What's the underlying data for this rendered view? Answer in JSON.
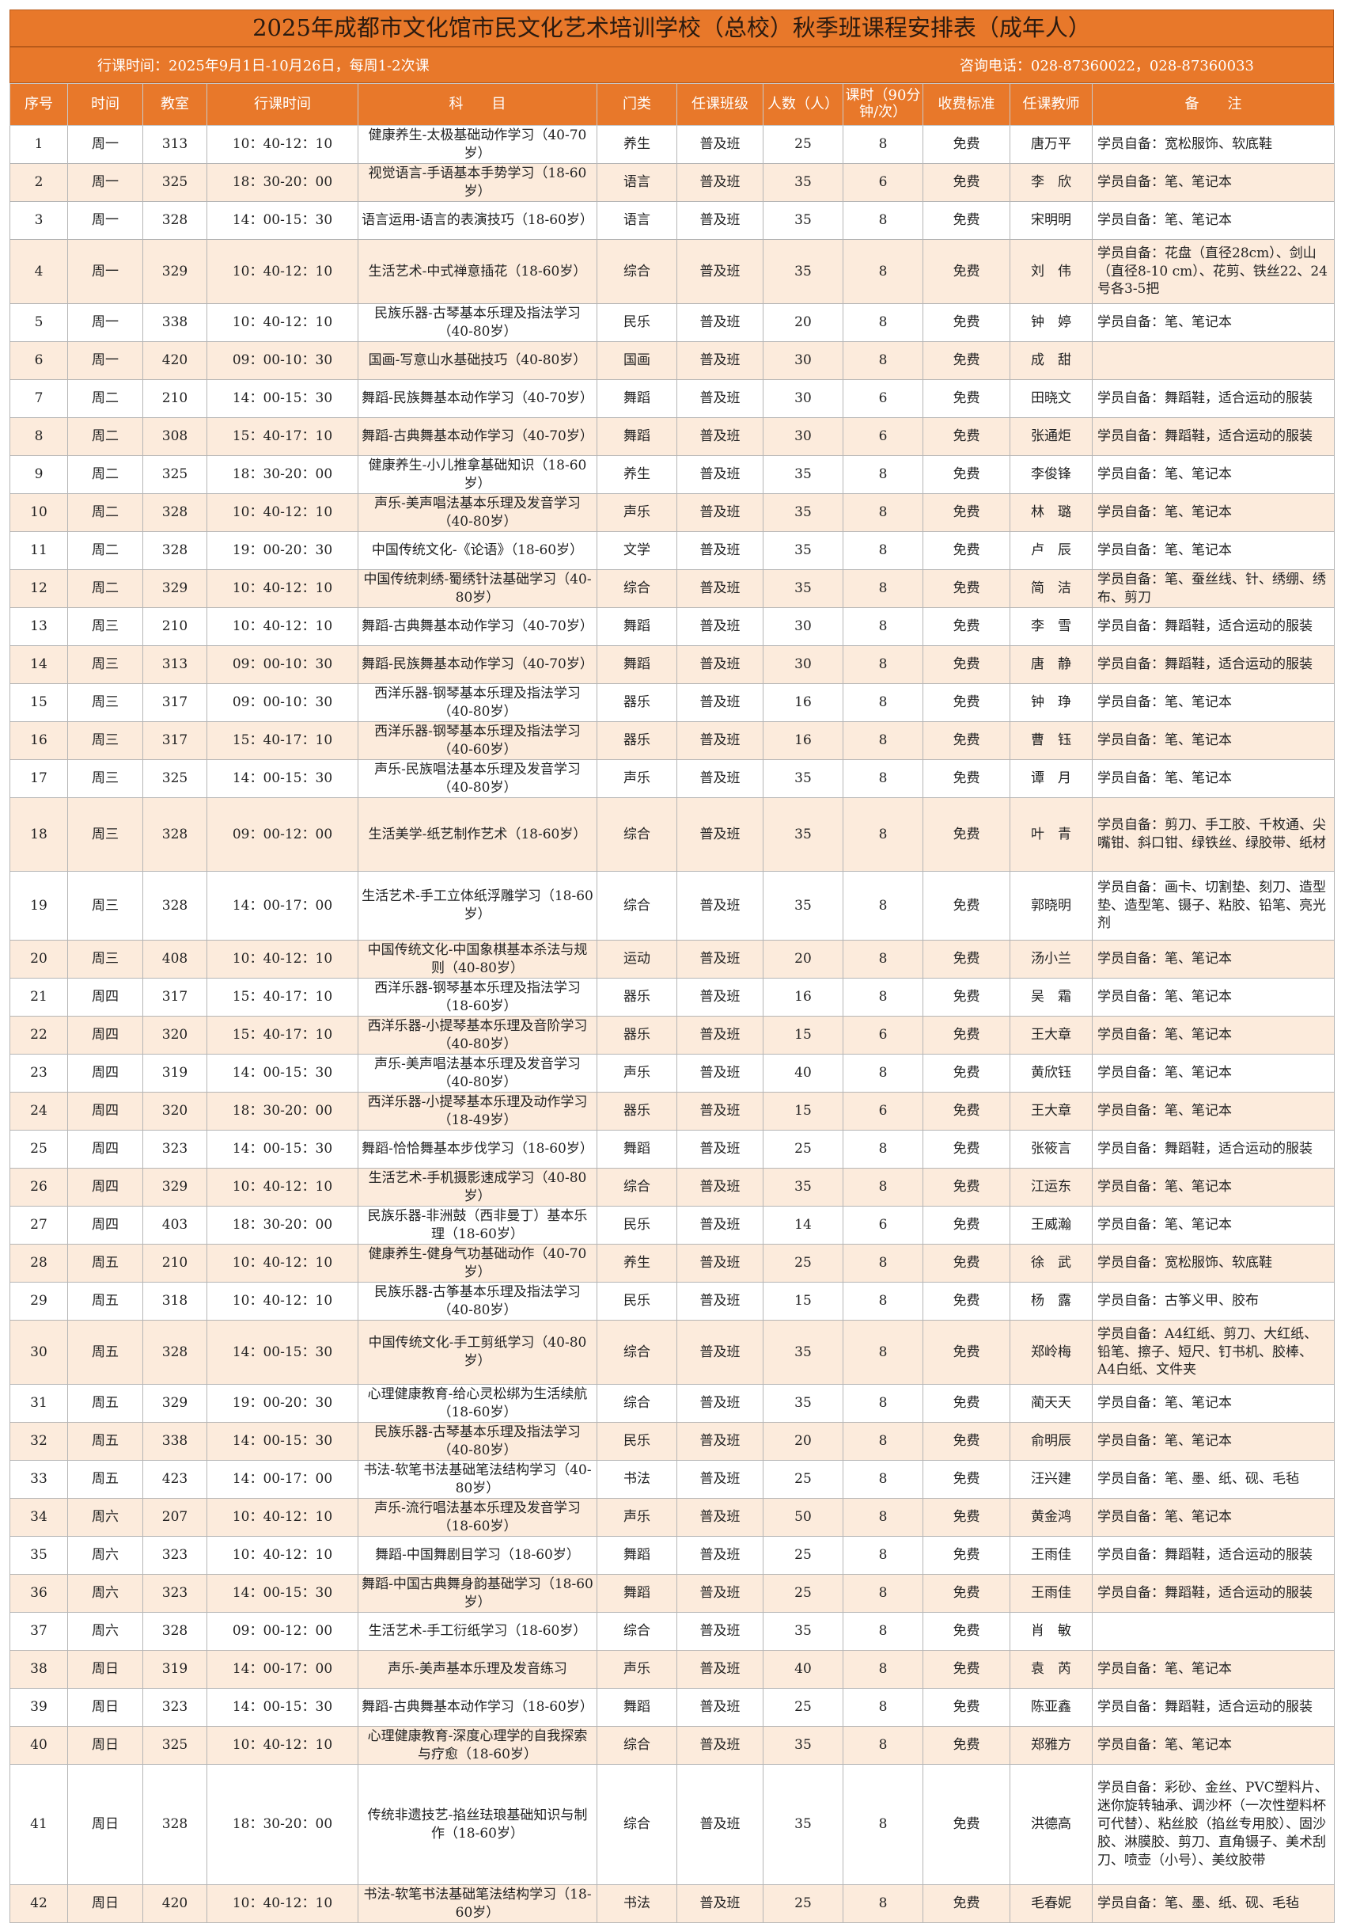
{
  "header": {
    "title": "2025年成都市文化馆市民文化艺术培训学校（总校）秋季班课程安排表（成年人）",
    "time": "行课时间：2025年9月1日-10月26日，每周1-2次课",
    "phone": "咨询电话：028-87360022，028-87360033"
  },
  "table": {
    "columns": [
      "序号",
      "时间",
      "教室",
      "行课时间",
      "科　　目",
      "门类",
      "任课班级",
      "人数（人）",
      "课时（90分钟/次）",
      "收费标准",
      "任课教师",
      "备　　注"
    ],
    "rows": [
      [
        "1",
        "周一",
        "313",
        "10：40-12：10",
        "健康养生-太极基础动作学习（40-70岁）",
        "养生",
        "普及班",
        "25",
        "8",
        "免费",
        "唐万平",
        "学员自备：宽松服饰、软底鞋"
      ],
      [
        "2",
        "周一",
        "325",
        "18：30-20：00",
        "视觉语言-手语基本手势学习（18-60岁）",
        "语言",
        "普及班",
        "35",
        "6",
        "免费",
        "李　欣",
        "学员自备：笔、笔记本"
      ],
      [
        "3",
        "周一",
        "328",
        "14：00-15：30",
        "语言运用-语言的表演技巧（18-60岁）",
        "语言",
        "普及班",
        "35",
        "8",
        "免费",
        "宋明明",
        "学员自备：笔、笔记本"
      ],
      [
        "4",
        "周一",
        "329",
        "10：40-12：10",
        "生活艺术-中式禅意插花（18-60岁）",
        "综合",
        "普及班",
        "35",
        "8",
        "免费",
        "刘　伟",
        "学员自备：花盘（直径28cm）、剑山（直径8-10 cm）、花剪、铁丝22、24号各3-5把"
      ],
      [
        "5",
        "周一",
        "338",
        "10：40-12：10",
        "民族乐器-古琴基本乐理及指法学习（40-80岁）",
        "民乐",
        "普及班",
        "20",
        "8",
        "免费",
        "钟　婷",
        "学员自备：笔、笔记本"
      ],
      [
        "6",
        "周一",
        "420",
        "09：00-10：30",
        "国画-写意山水基础技巧（40-80岁）",
        "国画",
        "普及班",
        "30",
        "8",
        "免费",
        "成　甜",
        ""
      ],
      [
        "7",
        "周二",
        "210",
        "14：00-15：30",
        "舞蹈-民族舞基本动作学习（40-70岁）",
        "舞蹈",
        "普及班",
        "30",
        "6",
        "免费",
        "田晓文",
        "学员自备：舞蹈鞋，适合运动的服装"
      ],
      [
        "8",
        "周二",
        "308",
        "15：40-17：10",
        "舞蹈-古典舞基本动作学习（40-70岁）",
        "舞蹈",
        "普及班",
        "30",
        "6",
        "免费",
        "张通炬",
        "学员自备：舞蹈鞋，适合运动的服装"
      ],
      [
        "9",
        "周二",
        "325",
        "18：30-20：00",
        "健康养生-小儿推拿基础知识（18-60岁）",
        "养生",
        "普及班",
        "35",
        "8",
        "免费",
        "李俊锋",
        "学员自备：笔、笔记本"
      ],
      [
        "10",
        "周二",
        "328",
        "10：40-12：10",
        "声乐-美声唱法基本乐理及发音学习（40-80岁）",
        "声乐",
        "普及班",
        "35",
        "8",
        "免费",
        "林　璐",
        "学员自备：笔、笔记本"
      ],
      [
        "11",
        "周二",
        "328",
        "19：00-20：30",
        "中国传统文化-《论语》（18-60岁）",
        "文学",
        "普及班",
        "35",
        "8",
        "免费",
        "卢　辰",
        "学员自备：笔、笔记本"
      ],
      [
        "12",
        "周二",
        "329",
        "10：40-12：10",
        "中国传统刺绣-蜀绣针法基础学习（40-80岁）",
        "综合",
        "普及班",
        "35",
        "8",
        "免费",
        "简　洁",
        "学员自备：笔、蚕丝线、针、绣绷、绣布、剪刀"
      ],
      [
        "13",
        "周三",
        "210",
        "10：40-12：10",
        "舞蹈-古典舞基本动作学习（40-70岁）",
        "舞蹈",
        "普及班",
        "30",
        "8",
        "免费",
        "李　雪",
        "学员自备：舞蹈鞋，适合运动的服装"
      ],
      [
        "14",
        "周三",
        "313",
        "09：00-10：30",
        "舞蹈-民族舞基本动作学习（40-70岁）",
        "舞蹈",
        "普及班",
        "30",
        "8",
        "免费",
        "唐　静",
        "学员自备：舞蹈鞋，适合运动的服装"
      ],
      [
        "15",
        "周三",
        "317",
        "09：00-10：30",
        "西洋乐器-钢琴基本乐理及指法学习（40-80岁）",
        "器乐",
        "普及班",
        "16",
        "8",
        "免费",
        "钟　琤",
        "学员自备：笔、笔记本"
      ],
      [
        "16",
        "周三",
        "317",
        "15：40-17：10",
        "西洋乐器-钢琴基本乐理及指法学习（40-60岁）",
        "器乐",
        "普及班",
        "16",
        "8",
        "免费",
        "曹　钰",
        "学员自备：笔、笔记本"
      ],
      [
        "17",
        "周三",
        "325",
        "14：00-15：30",
        "声乐-民族唱法基本乐理及发音学习（40-80岁）",
        "声乐",
        "普及班",
        "35",
        "8",
        "免费",
        "谭　月",
        "学员自备：笔、笔记本"
      ],
      [
        "18",
        "周三",
        "328",
        "09：00-12：00",
        "生活美学-纸艺制作艺术（18-60岁）",
        "综合",
        "普及班",
        "35",
        "8",
        "免费",
        "叶　青",
        "学员自备：剪刀、手工胶、千枚通、尖嘴钳、斜口钳、绿铁丝、绿胶带、纸材"
      ],
      [
        "19",
        "周三",
        "328",
        "14：00-17：00",
        "生活艺术-手工立体纸浮雕学习（18-60岁）",
        "综合",
        "普及班",
        "35",
        "8",
        "免费",
        "郭晓明",
        "学员自备：画卡、切割垫、刻刀、造型垫、造型笔、镊子、粘胶、铅笔、亮光剂"
      ],
      [
        "20",
        "周三",
        "408",
        "10：40-12：10",
        "中国传统文化-中国象棋基本杀法与规则（40-80岁）",
        "运动",
        "普及班",
        "20",
        "8",
        "免费",
        "汤小兰",
        "学员自备：笔、笔记本"
      ],
      [
        "21",
        "周四",
        "317",
        "15：40-17：10",
        "西洋乐器-钢琴基本乐理及指法学习（18-60岁）",
        "器乐",
        "普及班",
        "16",
        "8",
        "免费",
        "吴　霜",
        "学员自备：笔、笔记本"
      ],
      [
        "22",
        "周四",
        "320",
        "15：40-17：10",
        "西洋乐器-小提琴基本乐理及音阶学习（40-80岁）",
        "器乐",
        "普及班",
        "15",
        "6",
        "免费",
        "王大章",
        "学员自备：笔、笔记本"
      ],
      [
        "23",
        "周四",
        "319",
        "14：00-15：30",
        "声乐-美声唱法基本乐理及发音学习（40-80岁）",
        "声乐",
        "普及班",
        "40",
        "8",
        "免费",
        "黄欣钰",
        "学员自备：笔、笔记本"
      ],
      [
        "24",
        "周四",
        "320",
        "18：30-20：00",
        "西洋乐器-小提琴基本乐理及动作学习（18-49岁）",
        "器乐",
        "普及班",
        "15",
        "6",
        "免费",
        "王大章",
        "学员自备：笔、笔记本"
      ],
      [
        "25",
        "周四",
        "323",
        "14：00-15：30",
        "舞蹈-恰恰舞基本步伐学习（18-60岁）",
        "舞蹈",
        "普及班",
        "25",
        "8",
        "免费",
        "张筱言",
        "学员自备：舞蹈鞋，适合运动的服装"
      ],
      [
        "26",
        "周四",
        "329",
        "10：40-12：10",
        "生活艺术-手机摄影速成学习（40-80岁）",
        "综合",
        "普及班",
        "35",
        "8",
        "免费",
        "江运东",
        "学员自备：笔、笔记本"
      ],
      [
        "27",
        "周四",
        "403",
        "18：30-20：00",
        "民族乐器-非洲鼓（西非曼丁）基本乐理（18-60岁）",
        "民乐",
        "普及班",
        "14",
        "6",
        "免费",
        "王威瀚",
        "学员自备：笔、笔记本"
      ],
      [
        "28",
        "周五",
        "210",
        "10：40-12：10",
        "健康养生-健身气功基础动作（40-70岁）",
        "养生",
        "普及班",
        "25",
        "8",
        "免费",
        "徐　武",
        "学员自备：宽松服饰、软底鞋"
      ],
      [
        "29",
        "周五",
        "318",
        "10：40-12：10",
        "民族乐器-古筝基本乐理及指法学习（40-80岁）",
        "民乐",
        "普及班",
        "15",
        "8",
        "免费",
        "杨　露",
        "学员自备：古筝义甲、胶布"
      ],
      [
        "30",
        "周五",
        "328",
        "14：00-15：30",
        "中国传统文化-手工剪纸学习（40-80岁）",
        "综合",
        "普及班",
        "35",
        "8",
        "免费",
        "郑岭梅",
        "学员自备：A4红纸、剪刀、大红纸、铅笔、擦子、短尺、钉书机、胶棒、A4白纸、文件夹"
      ],
      [
        "31",
        "周五",
        "329",
        "19：00-20：30",
        "心理健康教育-给心灵松绑为生活续航（18-60岁）",
        "综合",
        "普及班",
        "35",
        "8",
        "免费",
        "蔺天天",
        "学员自备：笔、笔记本"
      ],
      [
        "32",
        "周五",
        "338",
        "14：00-15：30",
        "民族乐器-古琴基本乐理及指法学习（40-80岁）",
        "民乐",
        "普及班",
        "20",
        "8",
        "免费",
        "俞明辰",
        "学员自备：笔、笔记本"
      ],
      [
        "33",
        "周五",
        "423",
        "14：00-17：00",
        "书法-软笔书法基础笔法结构学习（40-80岁）",
        "书法",
        "普及班",
        "25",
        "8",
        "免费",
        "汪兴建",
        "学员自备：笔、墨、纸、砚、毛毡"
      ],
      [
        "34",
        "周六",
        "207",
        "10：40-12：10",
        "声乐-流行唱法基本乐理及发音学习（18-60岁）",
        "声乐",
        "普及班",
        "50",
        "8",
        "免费",
        "黄金鸿",
        "学员自备：笔、笔记本"
      ],
      [
        "35",
        "周六",
        "323",
        "10：40-12：10",
        "舞蹈-中国舞剧目学习（18-60岁）",
        "舞蹈",
        "普及班",
        "25",
        "8",
        "免费",
        "王雨佳",
        "学员自备：舞蹈鞋，适合运动的服装"
      ],
      [
        "36",
        "周六",
        "323",
        "14：00-15：30",
        "舞蹈-中国古典舞身韵基础学习（18-60岁）",
        "舞蹈",
        "普及班",
        "25",
        "8",
        "免费",
        "王雨佳",
        "学员自备：舞蹈鞋，适合运动的服装"
      ],
      [
        "37",
        "周六",
        "328",
        "09：00-12：00",
        "生活艺术-手工衍纸学习（18-60岁）",
        "综合",
        "普及班",
        "35",
        "8",
        "免费",
        "肖　敏",
        ""
      ],
      [
        "38",
        "周日",
        "319",
        "14：00-17：00",
        "声乐-美声基本乐理及发音练习",
        "声乐",
        "普及班",
        "40",
        "8",
        "免费",
        "袁　芮",
        "学员自备：笔、笔记本"
      ],
      [
        "39",
        "周日",
        "323",
        "14：00-15：30",
        "舞蹈-古典舞基本动作学习（18-60岁）",
        "舞蹈",
        "普及班",
        "25",
        "8",
        "免费",
        "陈亚鑫",
        "学员自备：舞蹈鞋，适合运动的服装"
      ],
      [
        "40",
        "周日",
        "325",
        "10：40-12：10",
        "心理健康教育-深度心理学的自我探索与疗愈（18-60岁）",
        "综合",
        "普及班",
        "35",
        "8",
        "免费",
        "郑雅方",
        "学员自备：笔、笔记本"
      ],
      [
        "41",
        "周日",
        "328",
        "18：30-20：00",
        "传统非遗技艺-掐丝珐琅基础知识与制作（18-60岁）",
        "综合",
        "普及班",
        "35",
        "8",
        "免费",
        "洪德高",
        "学员自备：彩砂、金丝、PVC塑料片、迷你旋转轴承、调沙杯（一次性塑料杯可代替）、粘丝胶（掐丝专用胶）、固沙胶、淋膜胶、剪刀、直角镊子、美术刮刀、喷壶（小号）、美纹胶带"
      ],
      [
        "42",
        "周日",
        "420",
        "10：40-12：10",
        "书法-软笔书法基础笔法结构学习（18-60岁）",
        "书法",
        "普及班",
        "25",
        "8",
        "免费",
        "毛春妮",
        "学员自备：笔、墨、纸、砚、毛毡"
      ]
    ]
  }
}
